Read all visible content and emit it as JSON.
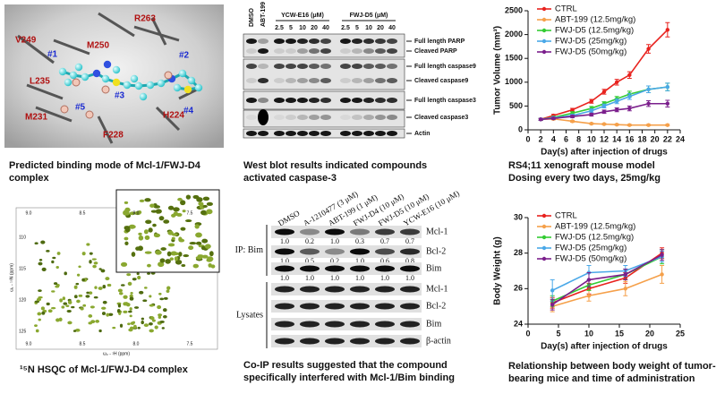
{
  "binding_mode": {
    "caption": [
      "Predicted binding mode of Mcl-1/FWJ-D4",
      "complex"
    ],
    "labels": [
      "R263",
      "V249",
      "M250",
      "#1",
      "#2",
      "#3",
      "L235",
      "#5",
      "M231",
      "F228",
      "H224",
      "#4"
    ]
  },
  "western_blot": {
    "caption": [
      "West blot results indicated compounds",
      "activated caspase-3"
    ],
    "lanes": [
      "DMSO",
      "ABT-199"
    ],
    "groups": [
      {
        "name": "YCW-E16 (μM)",
        "doses": [
          "2.5",
          "5",
          "10",
          "20",
          "40"
        ]
      },
      {
        "name": "FWJ-D5 (μM)",
        "doses": [
          "2.5",
          "5",
          "10",
          "20",
          "40"
        ]
      }
    ],
    "bands": [
      "Full length PARP",
      "Cleaved PARP",
      "Full length caspase9",
      "Cleaved caspase9",
      "Full length caspase3",
      "Cleaved caspase3",
      "Actin"
    ]
  },
  "hsqc": {
    "caption": "¹⁵N HSQC of Mcl-1/FWJ-D4 complex",
    "x_label": "ω₂ - ¹H (ppm)",
    "y_label": "ω₁ - ¹⁵N (ppm)",
    "x_ticks": [
      "9.0",
      "8.5",
      "8.0",
      "7.5"
    ],
    "y_ticks": [
      "110",
      "115",
      "120",
      "125"
    ]
  },
  "co_ip": {
    "caption": [
      "Co-IP results suggested that the compound",
      "specifically interfered with Mcl-1/Bim binding"
    ],
    "lanes": [
      "DMSO",
      "A-1210477 (3 μM)",
      "ABT-199 (1 μM)",
      "FWJ-D4 (10 μM)",
      "FWJ-D5 (10 μM)",
      "YCW-E16 (10 μM)"
    ],
    "sections": [
      {
        "label": "IP: Bim",
        "rows": [
          {
            "name": "Mcl-1",
            "ratios": [
              "1.0",
              "0.2",
              "1.0",
              "0.3",
              "0.7",
              "0.7"
            ]
          },
          {
            "name": "Bcl-2",
            "ratios": [
              "1.0",
              "0.5",
              "0.2",
              "1.0",
              "0.6",
              "0.8"
            ]
          },
          {
            "name": "Bim",
            "ratios": [
              "1.0",
              "1.0",
              "1.0",
              "1.0",
              "1.0",
              "1.0"
            ]
          }
        ]
      },
      {
        "label": "Lysates",
        "rows": [
          {
            "name": "Mcl-1"
          },
          {
            "name": "Bcl-2"
          },
          {
            "name": "Bim"
          },
          {
            "name": "β-actin"
          }
        ]
      }
    ]
  },
  "chart_data": [
    {
      "type": "line",
      "caption": [
        "RS4;11 xenograft mouse model",
        "Dosing every two days, 25mg/kg"
      ],
      "xlabel": "Day(s) after injection of drugs",
      "ylabel": "Tumor Volume (mm³)",
      "x": [
        2,
        4,
        7,
        10,
        12,
        14,
        16,
        19,
        22
      ],
      "xlim": [
        0,
        24
      ],
      "xticks": [
        0,
        2,
        4,
        6,
        8,
        10,
        12,
        14,
        16,
        18,
        20,
        22,
        24
      ],
      "ylim": [
        0,
        2500
      ],
      "yticks": [
        0,
        500,
        1000,
        1500,
        2000,
        2500
      ],
      "legend": "upper-left",
      "series": [
        {
          "name": "CTRL",
          "color": "#e8221e",
          "values": [
            220,
            300,
            420,
            600,
            800,
            1000,
            1150,
            1700,
            2100
          ],
          "errors": [
            20,
            25,
            30,
            40,
            50,
            60,
            70,
            90,
            150
          ]
        },
        {
          "name": "ABT-199 (12.5mg/kg)",
          "color": "#f5a04a",
          "values": [
            220,
            230,
            180,
            130,
            120,
            110,
            100,
            100,
            100
          ],
          "errors": [
            20,
            20,
            20,
            15,
            15,
            15,
            15,
            15,
            15
          ]
        },
        {
          "name": "FWJ-D5 (12.5mg/kg)",
          "color": "#33cc33",
          "values": [
            220,
            260,
            350,
            450,
            550,
            650,
            750,
            850,
            900
          ],
          "errors": [
            20,
            25,
            30,
            40,
            40,
            50,
            60,
            70,
            80
          ]
        },
        {
          "name": "FWJ-D5 (25mg/kg)",
          "color": "#4aa8e8",
          "values": [
            220,
            250,
            300,
            400,
            500,
            600,
            700,
            850,
            900
          ],
          "errors": [
            20,
            25,
            30,
            40,
            40,
            50,
            60,
            70,
            80
          ]
        },
        {
          "name": "FWJ-D5 (50mg/kg)",
          "color": "#7b1f8c",
          "values": [
            220,
            240,
            280,
            320,
            380,
            420,
            450,
            550,
            550
          ],
          "errors": [
            20,
            20,
            25,
            30,
            35,
            40,
            50,
            60,
            70
          ]
        }
      ]
    },
    {
      "type": "line",
      "caption": [
        "Relationship between body weight of tumor-",
        "bearing mice and time of administration"
      ],
      "xlabel": "Day(s) after injection of drugs",
      "ylabel": "Body Weight (g)",
      "x": [
        4,
        10,
        16,
        22
      ],
      "xlim": [
        0,
        25
      ],
      "xticks": [
        0,
        5,
        10,
        15,
        20,
        25
      ],
      "ylim": [
        24,
        30
      ],
      "yticks": [
        24,
        26,
        28,
        30
      ],
      "legend": "upper-left",
      "series": [
        {
          "name": "CTRL",
          "color": "#e8221e",
          "values": [
            25.2,
            26.0,
            26.6,
            28.0
          ],
          "errors": [
            0.3,
            0.3,
            0.3,
            0.3
          ]
        },
        {
          "name": "ABT-199 (12.5mg/kg)",
          "color": "#f5a04a",
          "values": [
            25.0,
            25.6,
            26.0,
            26.8
          ],
          "errors": [
            0.3,
            0.3,
            0.4,
            0.5
          ]
        },
        {
          "name": "FWJ-D5 (12.5mg/kg)",
          "color": "#33cc33",
          "values": [
            25.3,
            26.2,
            26.8,
            27.8
          ],
          "errors": [
            0.3,
            0.3,
            0.3,
            0.4
          ]
        },
        {
          "name": "FWJ-D5 (25mg/kg)",
          "color": "#4aa8e8",
          "values": [
            25.9,
            26.9,
            27.0,
            27.8
          ],
          "errors": [
            0.6,
            0.4,
            0.3,
            0.3
          ]
        },
        {
          "name": "FWJ-D5 (50mg/kg)",
          "color": "#7b1f8c",
          "values": [
            25.1,
            26.5,
            26.8,
            27.9
          ],
          "errors": [
            0.3,
            0.4,
            0.3,
            0.3
          ]
        }
      ]
    }
  ]
}
